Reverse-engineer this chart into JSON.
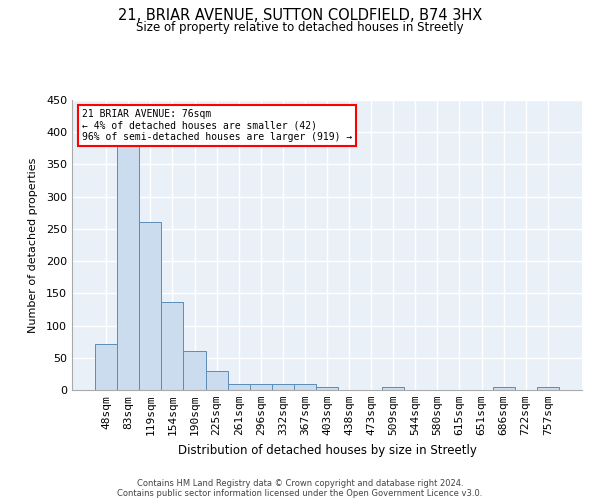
{
  "title_line1": "21, BRIAR AVENUE, SUTTON COLDFIELD, B74 3HX",
  "title_line2": "Size of property relative to detached houses in Streetly",
  "xlabel": "Distribution of detached houses by size in Streetly",
  "ylabel": "Number of detached properties",
  "bar_color": "#ccdcef",
  "bar_edge_color": "#5b8db8",
  "background_color": "#eaf0f8",
  "grid_color": "#ffffff",
  "categories": [
    "48sqm",
    "83sqm",
    "119sqm",
    "154sqm",
    "190sqm",
    "225sqm",
    "261sqm",
    "296sqm",
    "332sqm",
    "367sqm",
    "403sqm",
    "438sqm",
    "473sqm",
    "509sqm",
    "544sqm",
    "580sqm",
    "615sqm",
    "651sqm",
    "686sqm",
    "722sqm",
    "757sqm"
  ],
  "values": [
    72,
    380,
    261,
    136,
    60,
    30,
    10,
    9,
    10,
    10,
    5,
    0,
    0,
    5,
    0,
    0,
    0,
    0,
    5,
    0,
    5
  ],
  "ylim": [
    0,
    450
  ],
  "yticks": [
    0,
    50,
    100,
    150,
    200,
    250,
    300,
    350,
    400,
    450
  ],
  "annotation_text_line1": "21 BRIAR AVENUE: 76sqm",
  "annotation_text_line2": "← 4% of detached houses are smaller (42)",
  "annotation_text_line3": "96% of semi-detached houses are larger (919) →",
  "footer_line1": "Contains HM Land Registry data © Crown copyright and database right 2024.",
  "footer_line2": "Contains public sector information licensed under the Open Government Licence v3.0."
}
